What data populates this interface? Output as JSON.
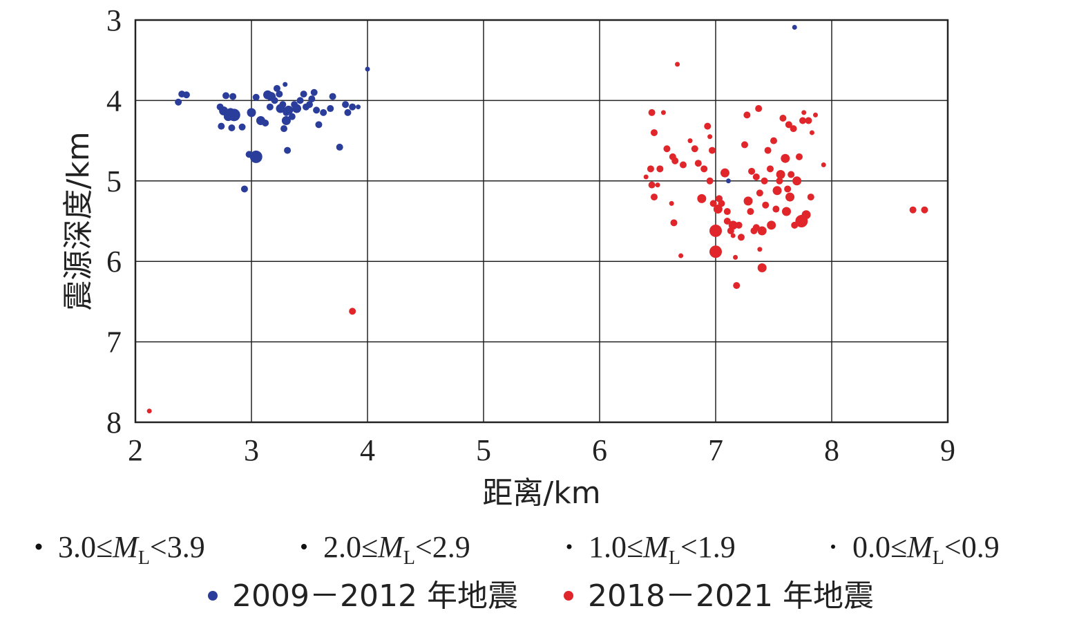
{
  "chart_data": {
    "type": "scatter",
    "xlabel": "距离/km",
    "ylabel": "震源深度/km",
    "xlim": [
      2,
      9
    ],
    "ylim": [
      3,
      8
    ],
    "y_inverted": true,
    "grid": true,
    "x_ticks": [
      "2",
      "3",
      "4",
      "5",
      "6",
      "7",
      "8",
      "9"
    ],
    "y_ticks": [
      "3",
      "4",
      "5",
      "6",
      "7",
      "8"
    ],
    "magnitude_legend": [
      {
        "range_low": "3.0≤",
        "M": "M",
        "sub": "L",
        "range_high": "<3.9",
        "marker_size": 3.5
      },
      {
        "range_low": "2.0≤",
        "M": "M",
        "sub": "L",
        "range_high": "<2.9",
        "marker_size": 2.5
      },
      {
        "range_low": "1.0≤",
        "M": "M",
        "sub": "L",
        "range_high": "<1.9",
        "marker_size": 1.5
      },
      {
        "range_low": "0.0≤",
        "M": "M",
        "sub": "L",
        "range_high": "<0.9",
        "marker_size": 0.5
      }
    ],
    "series": [
      {
        "name": "2009－2012 年地震",
        "color": "#2b3d9b",
        "points": [
          [
            2.37,
            4.02,
            1
          ],
          [
            2.4,
            3.92,
            1
          ],
          [
            2.44,
            3.93,
            1
          ],
          [
            2.73,
            4.08,
            1
          ],
          [
            2.76,
            4.13,
            2
          ],
          [
            2.78,
            3.94,
            1
          ],
          [
            2.8,
            4.2,
            2
          ],
          [
            2.82,
            4.15,
            2
          ],
          [
            2.74,
            4.32,
            1
          ],
          [
            2.83,
            4.34,
            1
          ],
          [
            2.85,
            4.18,
            3
          ],
          [
            2.84,
            3.95,
            1
          ],
          [
            2.92,
            4.33,
            1
          ],
          [
            2.98,
            4.67,
            1
          ],
          [
            3.0,
            4.15,
            2
          ],
          [
            3.04,
            4.7,
            3
          ],
          [
            3.04,
            3.96,
            1
          ],
          [
            3.08,
            4.25,
            2
          ],
          [
            3.12,
            4.28,
            1
          ],
          [
            3.14,
            3.93,
            2
          ],
          [
            3.16,
            4.08,
            1
          ],
          [
            3.17,
            3.95,
            2
          ],
          [
            3.2,
            4.0,
            1
          ],
          [
            3.22,
            3.85,
            1
          ],
          [
            3.24,
            3.92,
            1
          ],
          [
            3.25,
            4.1,
            2
          ],
          [
            3.27,
            4.05,
            1
          ],
          [
            3.28,
            4.35,
            1
          ],
          [
            3.3,
            4.25,
            2
          ],
          [
            3.3,
            4.15,
            1
          ],
          [
            3.31,
            4.62,
            1
          ],
          [
            3.32,
            4.12,
            2
          ],
          [
            3.35,
            4.2,
            1
          ],
          [
            3.37,
            4.05,
            1
          ],
          [
            3.39,
            4.1,
            2
          ],
          [
            3.42,
            4.0,
            1
          ],
          [
            3.45,
            3.92,
            1
          ],
          [
            3.47,
            4.08,
            1
          ],
          [
            3.5,
            4.05,
            1
          ],
          [
            3.52,
            3.98,
            1
          ],
          [
            3.54,
            3.9,
            1
          ],
          [
            3.56,
            4.12,
            1
          ],
          [
            3.58,
            4.3,
            1
          ],
          [
            3.62,
            4.15,
            1
          ],
          [
            3.68,
            4.1,
            1
          ],
          [
            3.7,
            3.95,
            1
          ],
          [
            3.76,
            4.58,
            1
          ],
          [
            3.81,
            4.05,
            1
          ],
          [
            3.83,
            4.15,
            1
          ],
          [
            3.87,
            4.08,
            1
          ],
          [
            3.92,
            4.08,
            0
          ],
          [
            4.0,
            3.61,
            0
          ],
          [
            3.29,
            3.8,
            0
          ],
          [
            2.94,
            5.1,
            1
          ],
          [
            7.68,
            3.09,
            0
          ],
          [
            7.11,
            5.0,
            0
          ]
        ]
      },
      {
        "name": "2018－2021 年地震",
        "color": "#e0262a",
        "points": [
          [
            2.12,
            7.86,
            0
          ],
          [
            3.87,
            6.62,
            1
          ],
          [
            6.67,
            3.55,
            0
          ],
          [
            6.45,
            4.15,
            1
          ],
          [
            6.55,
            4.15,
            0
          ],
          [
            6.47,
            4.4,
            1
          ],
          [
            6.52,
            4.85,
            1
          ],
          [
            6.44,
            4.85,
            1
          ],
          [
            6.4,
            4.95,
            0
          ],
          [
            6.45,
            5.05,
            1
          ],
          [
            6.5,
            5.05,
            0
          ],
          [
            6.47,
            5.2,
            1
          ],
          [
            6.58,
            4.6,
            1
          ],
          [
            6.63,
            4.7,
            1
          ],
          [
            6.65,
            4.75,
            1
          ],
          [
            6.72,
            4.8,
            1
          ],
          [
            6.62,
            5.28,
            0
          ],
          [
            6.64,
            5.52,
            1
          ],
          [
            6.7,
            5.93,
            0
          ],
          [
            6.78,
            4.5,
            0
          ],
          [
            6.82,
            4.6,
            1
          ],
          [
            6.85,
            4.78,
            1
          ],
          [
            6.88,
            5.22,
            2
          ],
          [
            6.9,
            4.85,
            1
          ],
          [
            6.93,
            4.32,
            1
          ],
          [
            6.95,
            4.45,
            0
          ],
          [
            6.95,
            5.0,
            1
          ],
          [
            6.97,
            4.62,
            1
          ],
          [
            6.98,
            5.28,
            1
          ],
          [
            7.0,
            5.62,
            3
          ],
          [
            7.02,
            5.35,
            2
          ],
          [
            7.0,
            5.88,
            3
          ],
          [
            7.03,
            5.22,
            1
          ],
          [
            7.05,
            5.28,
            1
          ],
          [
            7.1,
            5.38,
            1
          ],
          [
            7.08,
            4.9,
            2
          ],
          [
            7.1,
            5.5,
            1
          ],
          [
            7.13,
            5.62,
            1
          ],
          [
            7.15,
            5.55,
            2
          ],
          [
            7.17,
            5.95,
            0
          ],
          [
            7.18,
            6.3,
            1
          ],
          [
            7.2,
            5.55,
            1
          ],
          [
            7.22,
            5.7,
            1
          ],
          [
            7.25,
            4.55,
            1
          ],
          [
            7.27,
            4.18,
            1
          ],
          [
            7.28,
            5.25,
            2
          ],
          [
            7.3,
            5.38,
            1
          ],
          [
            7.31,
            4.88,
            1
          ],
          [
            7.33,
            5.62,
            1
          ],
          [
            7.35,
            5.58,
            1
          ],
          [
            7.37,
            4.1,
            1
          ],
          [
            7.38,
            5.15,
            1
          ],
          [
            7.4,
            5.62,
            2
          ],
          [
            7.4,
            6.08,
            2
          ],
          [
            7.42,
            5.0,
            1
          ],
          [
            7.43,
            5.3,
            1
          ],
          [
            7.45,
            4.62,
            1
          ],
          [
            7.47,
            4.85,
            1
          ],
          [
            7.48,
            5.55,
            2
          ],
          [
            7.5,
            4.5,
            1
          ],
          [
            7.52,
            5.35,
            1
          ],
          [
            7.53,
            5.12,
            2
          ],
          [
            7.55,
            5.0,
            1
          ],
          [
            7.56,
            4.92,
            2
          ],
          [
            7.58,
            4.22,
            1
          ],
          [
            7.6,
            4.72,
            2
          ],
          [
            7.61,
            5.38,
            2
          ],
          [
            7.62,
            5.1,
            1
          ],
          [
            7.63,
            4.3,
            1
          ],
          [
            7.64,
            5.2,
            2
          ],
          [
            7.65,
            4.92,
            1
          ],
          [
            7.67,
            4.35,
            1
          ],
          [
            7.68,
            5.55,
            1
          ],
          [
            7.7,
            5.0,
            2
          ],
          [
            7.72,
            4.7,
            1
          ],
          [
            7.74,
            5.5,
            3
          ],
          [
            7.75,
            4.25,
            1
          ],
          [
            7.76,
            4.15,
            0
          ],
          [
            7.78,
            5.42,
            2
          ],
          [
            7.8,
            4.25,
            1
          ],
          [
            7.82,
            5.2,
            1
          ],
          [
            7.83,
            4.4,
            0
          ],
          [
            7.86,
            4.18,
            0
          ],
          [
            7.93,
            4.8,
            0
          ],
          [
            7.38,
            5.85,
            0
          ],
          [
            7.35,
            4.95,
            1
          ],
          [
            7.15,
            5.68,
            0
          ],
          [
            8.7,
            5.36,
            1
          ],
          [
            8.8,
            5.36,
            1
          ]
        ]
      }
    ]
  }
}
